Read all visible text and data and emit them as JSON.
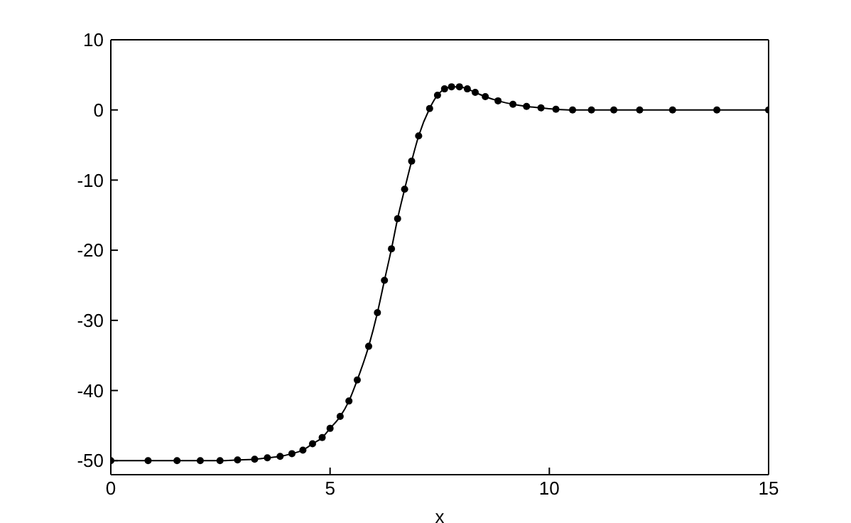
{
  "chart_data": {
    "type": "line",
    "xlabel": "x",
    "xlim": [
      0,
      15
    ],
    "xticks": [
      0,
      5,
      10,
      15
    ],
    "ylim": [
      -52,
      10
    ],
    "yticks": [
      -50,
      -40,
      -30,
      -20,
      -10,
      0,
      10
    ],
    "grid": false,
    "marker": "circle",
    "line_style": "solid",
    "series": [
      {
        "color": "#000000",
        "x": [
          0,
          0.85,
          1.51,
          2.04,
          2.49,
          2.89,
          3.28,
          3.57,
          3.86,
          4.13,
          4.38,
          4.6,
          4.82,
          5.0,
          5.23,
          5.43,
          5.62,
          5.88,
          6.08,
          6.24,
          6.4,
          6.54,
          6.7,
          6.86,
          7.02,
          7.27,
          7.45,
          7.61,
          7.77,
          7.95,
          8.13,
          8.31,
          8.54,
          8.83,
          9.17,
          9.48,
          9.81,
          10.15,
          10.53,
          10.96,
          11.47,
          12.06,
          12.81,
          13.82,
          15
        ],
        "values": [
          -50,
          -50,
          -50,
          -50,
          -50,
          -49.9,
          -49.8,
          -49.6,
          -49.4,
          -49,
          -48.5,
          -47.6,
          -46.7,
          -45.4,
          -43.7,
          -41.5,
          -38.5,
          -33.7,
          -28.9,
          -24.3,
          -19.8,
          -15.5,
          -11.3,
          -7.3,
          -3.7,
          0.2,
          2.1,
          3,
          3.3,
          3.3,
          3,
          2.5,
          1.9,
          1.3,
          0.8,
          0.5,
          0.3,
          0.1,
          0,
          0,
          0,
          0,
          0,
          0,
          0
        ]
      }
    ]
  }
}
